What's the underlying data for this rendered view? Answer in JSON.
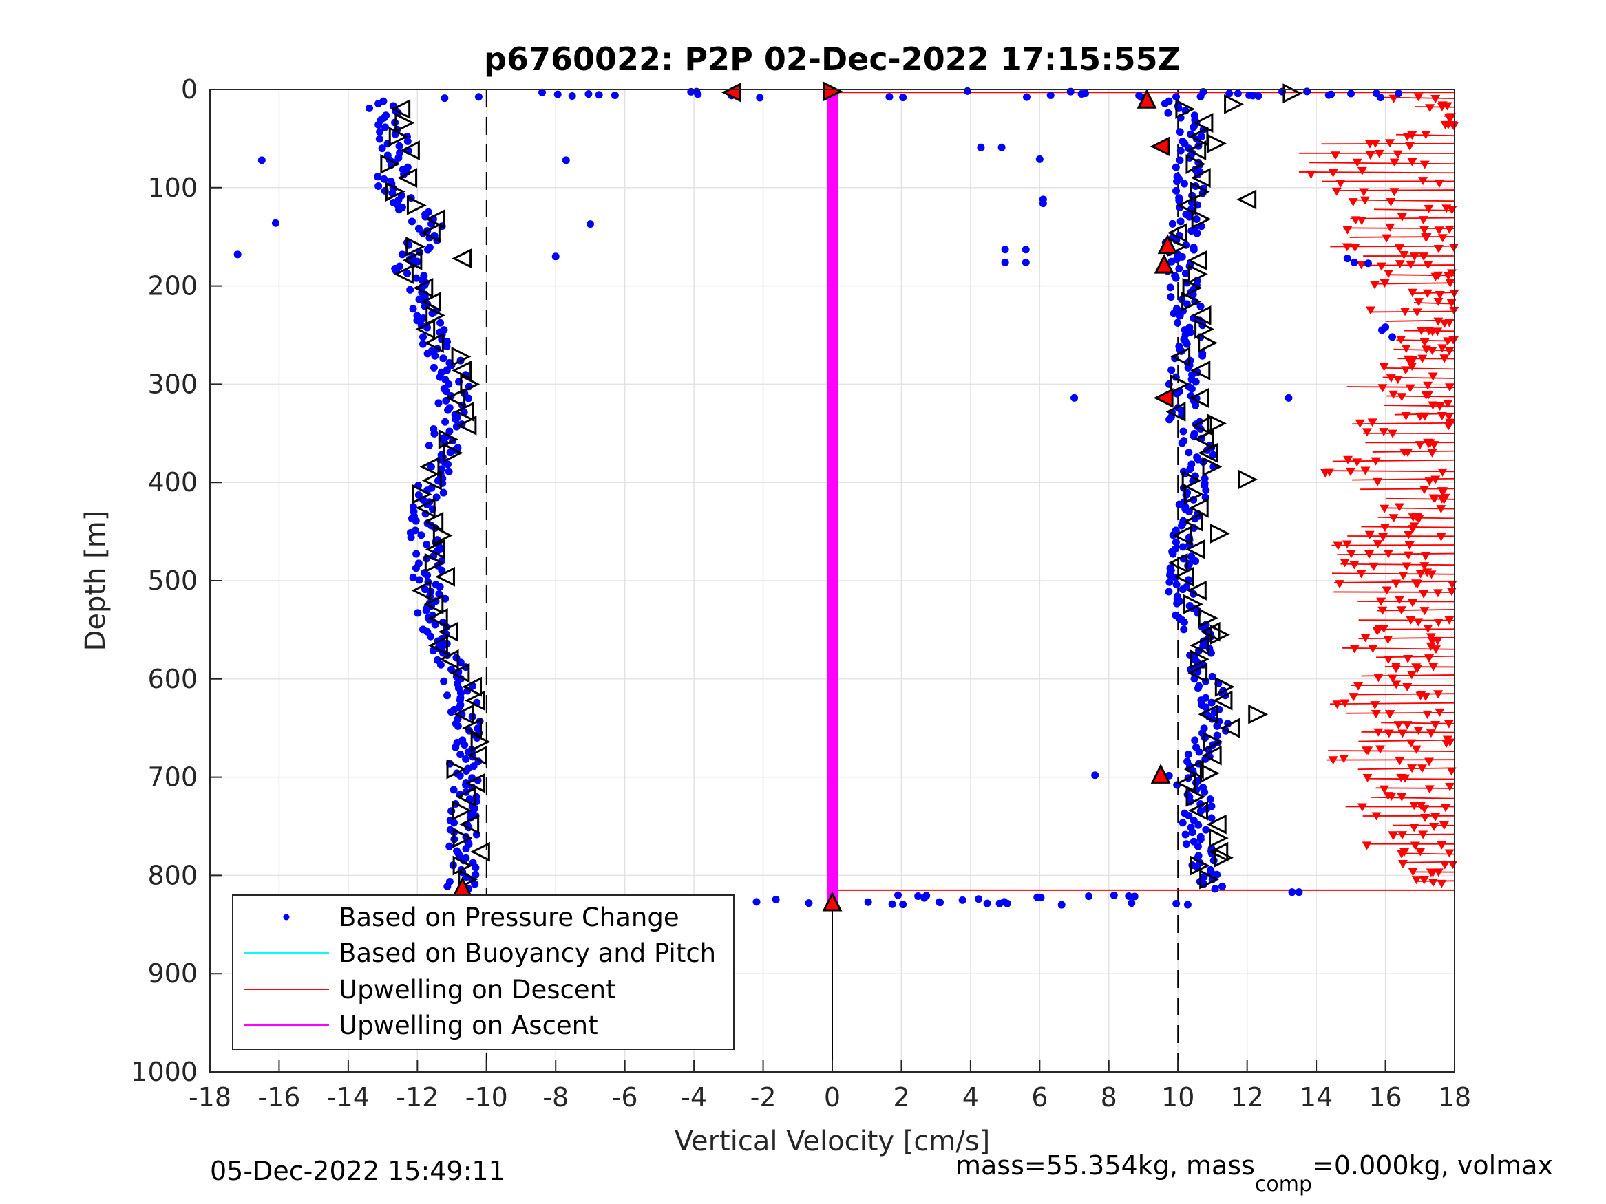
{
  "chart_data": {
    "type": "scatter",
    "title": "p6760022: P2P 02-Dec-2022 17:15:55Z",
    "xlabel": "Vertical Velocity [cm/s]",
    "ylabel": "Depth [m]",
    "xlim": [
      -18,
      18
    ],
    "ylim": [
      0,
      1000
    ],
    "y_reversed": true,
    "grid": true,
    "xticks": [
      "-18",
      "-16",
      "-14",
      "-12",
      "-10",
      "-8",
      "-6",
      "-4",
      "-2",
      "0",
      "2",
      "4",
      "6",
      "8",
      "10",
      "12",
      "14",
      "16",
      "18"
    ],
    "yticks": [
      "0",
      "100",
      "200",
      "300",
      "400",
      "500",
      "600",
      "700",
      "800",
      "900",
      "1000"
    ],
    "reference_lines": {
      "dashed_x": [
        -10,
        10
      ],
      "solid_x": [
        0
      ]
    },
    "legend": {
      "placement": "bottom-left",
      "entries": [
        {
          "label": "Based on Pressure Change",
          "color": "#0000ff",
          "marker": "dot"
        },
        {
          "label": "Based on Buoyancy and Pitch",
          "color": "#00ffff",
          "marker": "line"
        },
        {
          "label": "Upwelling on Descent",
          "color": "#ff0000",
          "marker": "line"
        },
        {
          "label": "Upwelling on Ascent",
          "color": "#ff00ff",
          "marker": "line"
        }
      ]
    },
    "series": [
      {
        "name": "Based on Pressure Change",
        "color": "#0000ff",
        "descent_profile": {
          "depth": [
            5,
            30,
            60,
            100,
            140,
            180,
            210,
            250,
            300,
            350,
            400,
            450,
            500,
            550,
            600,
            650,
            700,
            750,
            800,
            815
          ],
          "velocity": [
            -13.2,
            -12.8,
            -12.6,
            -12.8,
            -11.6,
            -12.3,
            -12.0,
            -11.5,
            -10.9,
            -11.1,
            -11.6,
            -11.8,
            -11.7,
            -11.5,
            -10.8,
            -10.6,
            -10.7,
            -10.6,
            -10.7,
            -10.8
          ]
        },
        "ascent_profile": {
          "depth": [
            815,
            780,
            750,
            720,
            700,
            650,
            600,
            550,
            500,
            450,
            400,
            370,
            340,
            300,
            250,
            200,
            160,
            120,
            80,
            40,
            10
          ],
          "velocity": [
            11.0,
            10.7,
            10.6,
            10.5,
            10.1,
            11.2,
            10.8,
            10.5,
            10.0,
            10.3,
            10.6,
            10.6,
            10.2,
            10.1,
            10.4,
            10.2,
            10.0,
            10.5,
            10.2,
            10.4,
            9.8
          ]
        },
        "surface_transit_depth_m": 5,
        "bottom_transit_depth_m": 825
      },
      {
        "name": "Upwelling on Descent",
        "color": "#ff0000",
        "depth": [
          5,
          35,
          70,
          105,
          140,
          175,
          200,
          230,
          260,
          290,
          330,
          360,
          390,
          420,
          460,
          500,
          530,
          560,
          600,
          640,
          680,
          700,
          730,
          760,
          790,
          810
        ],
        "velocity": [
          16.5,
          17.2,
          13.2,
          15.5,
          15.4,
          14.5,
          16.5,
          16.2,
          15.9,
          15.6,
          15.8,
          15.2,
          15.0,
          15.6,
          14.6,
          14.8,
          15.2,
          15.6,
          15.0,
          15.3,
          15.0,
          15.6,
          15.4,
          15.8,
          16.2,
          16.6
        ]
      },
      {
        "name": "Upwelling on Ascent",
        "color": "#ff00ff",
        "depth": [
          0,
          830
        ],
        "velocity": [
          0,
          0
        ]
      }
    ]
  },
  "footer": {
    "left": "05-Dec-2022 15:49:11",
    "right_prefix": "mass=55.354kg, mass",
    "right_subscript": "comp",
    "right_suffix": "=0.000kg, volmax"
  }
}
